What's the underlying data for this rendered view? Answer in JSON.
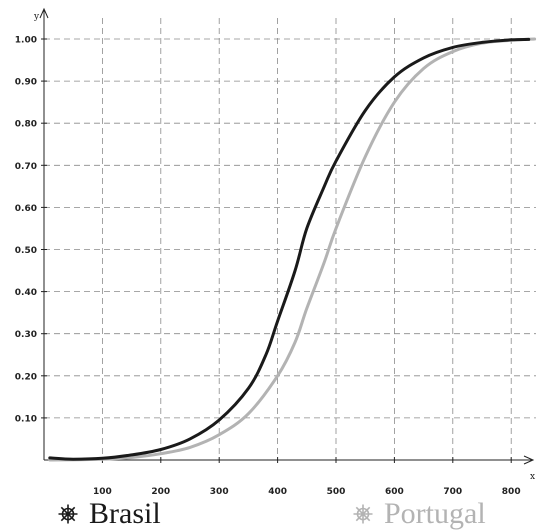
{
  "chart_data": {
    "type": "line",
    "xlabel": "x",
    "ylabel": "y",
    "xlim": [
      0,
      840
    ],
    "ylim": [
      0,
      1.0
    ],
    "grid": true,
    "x_ticks": [
      "100",
      "200",
      "300",
      "400",
      "500",
      "600",
      "700",
      "800"
    ],
    "y_ticks": [
      "0.10",
      "0.20",
      "0.30",
      "0.40",
      "0.50",
      "0.60",
      "0.70",
      "0.80",
      "0.90",
      "1.00"
    ],
    "legend_position": "bottom",
    "series": [
      {
        "name": "Brasil",
        "color": "#1a1a1a",
        "icon": "ship-wheel-icon",
        "x": [
          10,
          50,
          100,
          150,
          200,
          250,
          300,
          350,
          380,
          400,
          430,
          450,
          480,
          500,
          550,
          600,
          650,
          700,
          750,
          800,
          830
        ],
        "y": [
          0.005,
          0.002,
          0.004,
          0.012,
          0.025,
          0.05,
          0.095,
          0.17,
          0.25,
          0.33,
          0.45,
          0.55,
          0.65,
          0.71,
          0.83,
          0.91,
          0.955,
          0.98,
          0.992,
          0.998,
          0.999
        ]
      },
      {
        "name": "Portugal",
        "color": "#b3b3b3",
        "icon": "ship-wheel-icon",
        "x": [
          10,
          100,
          150,
          200,
          250,
          300,
          350,
          400,
          430,
          450,
          480,
          500,
          550,
          600,
          650,
          700,
          750,
          800,
          840
        ],
        "y": [
          0.0,
          0.002,
          0.006,
          0.015,
          0.03,
          0.06,
          0.11,
          0.2,
          0.28,
          0.36,
          0.47,
          0.55,
          0.72,
          0.85,
          0.93,
          0.97,
          0.99,
          0.997,
          1.0
        ]
      }
    ]
  }
}
